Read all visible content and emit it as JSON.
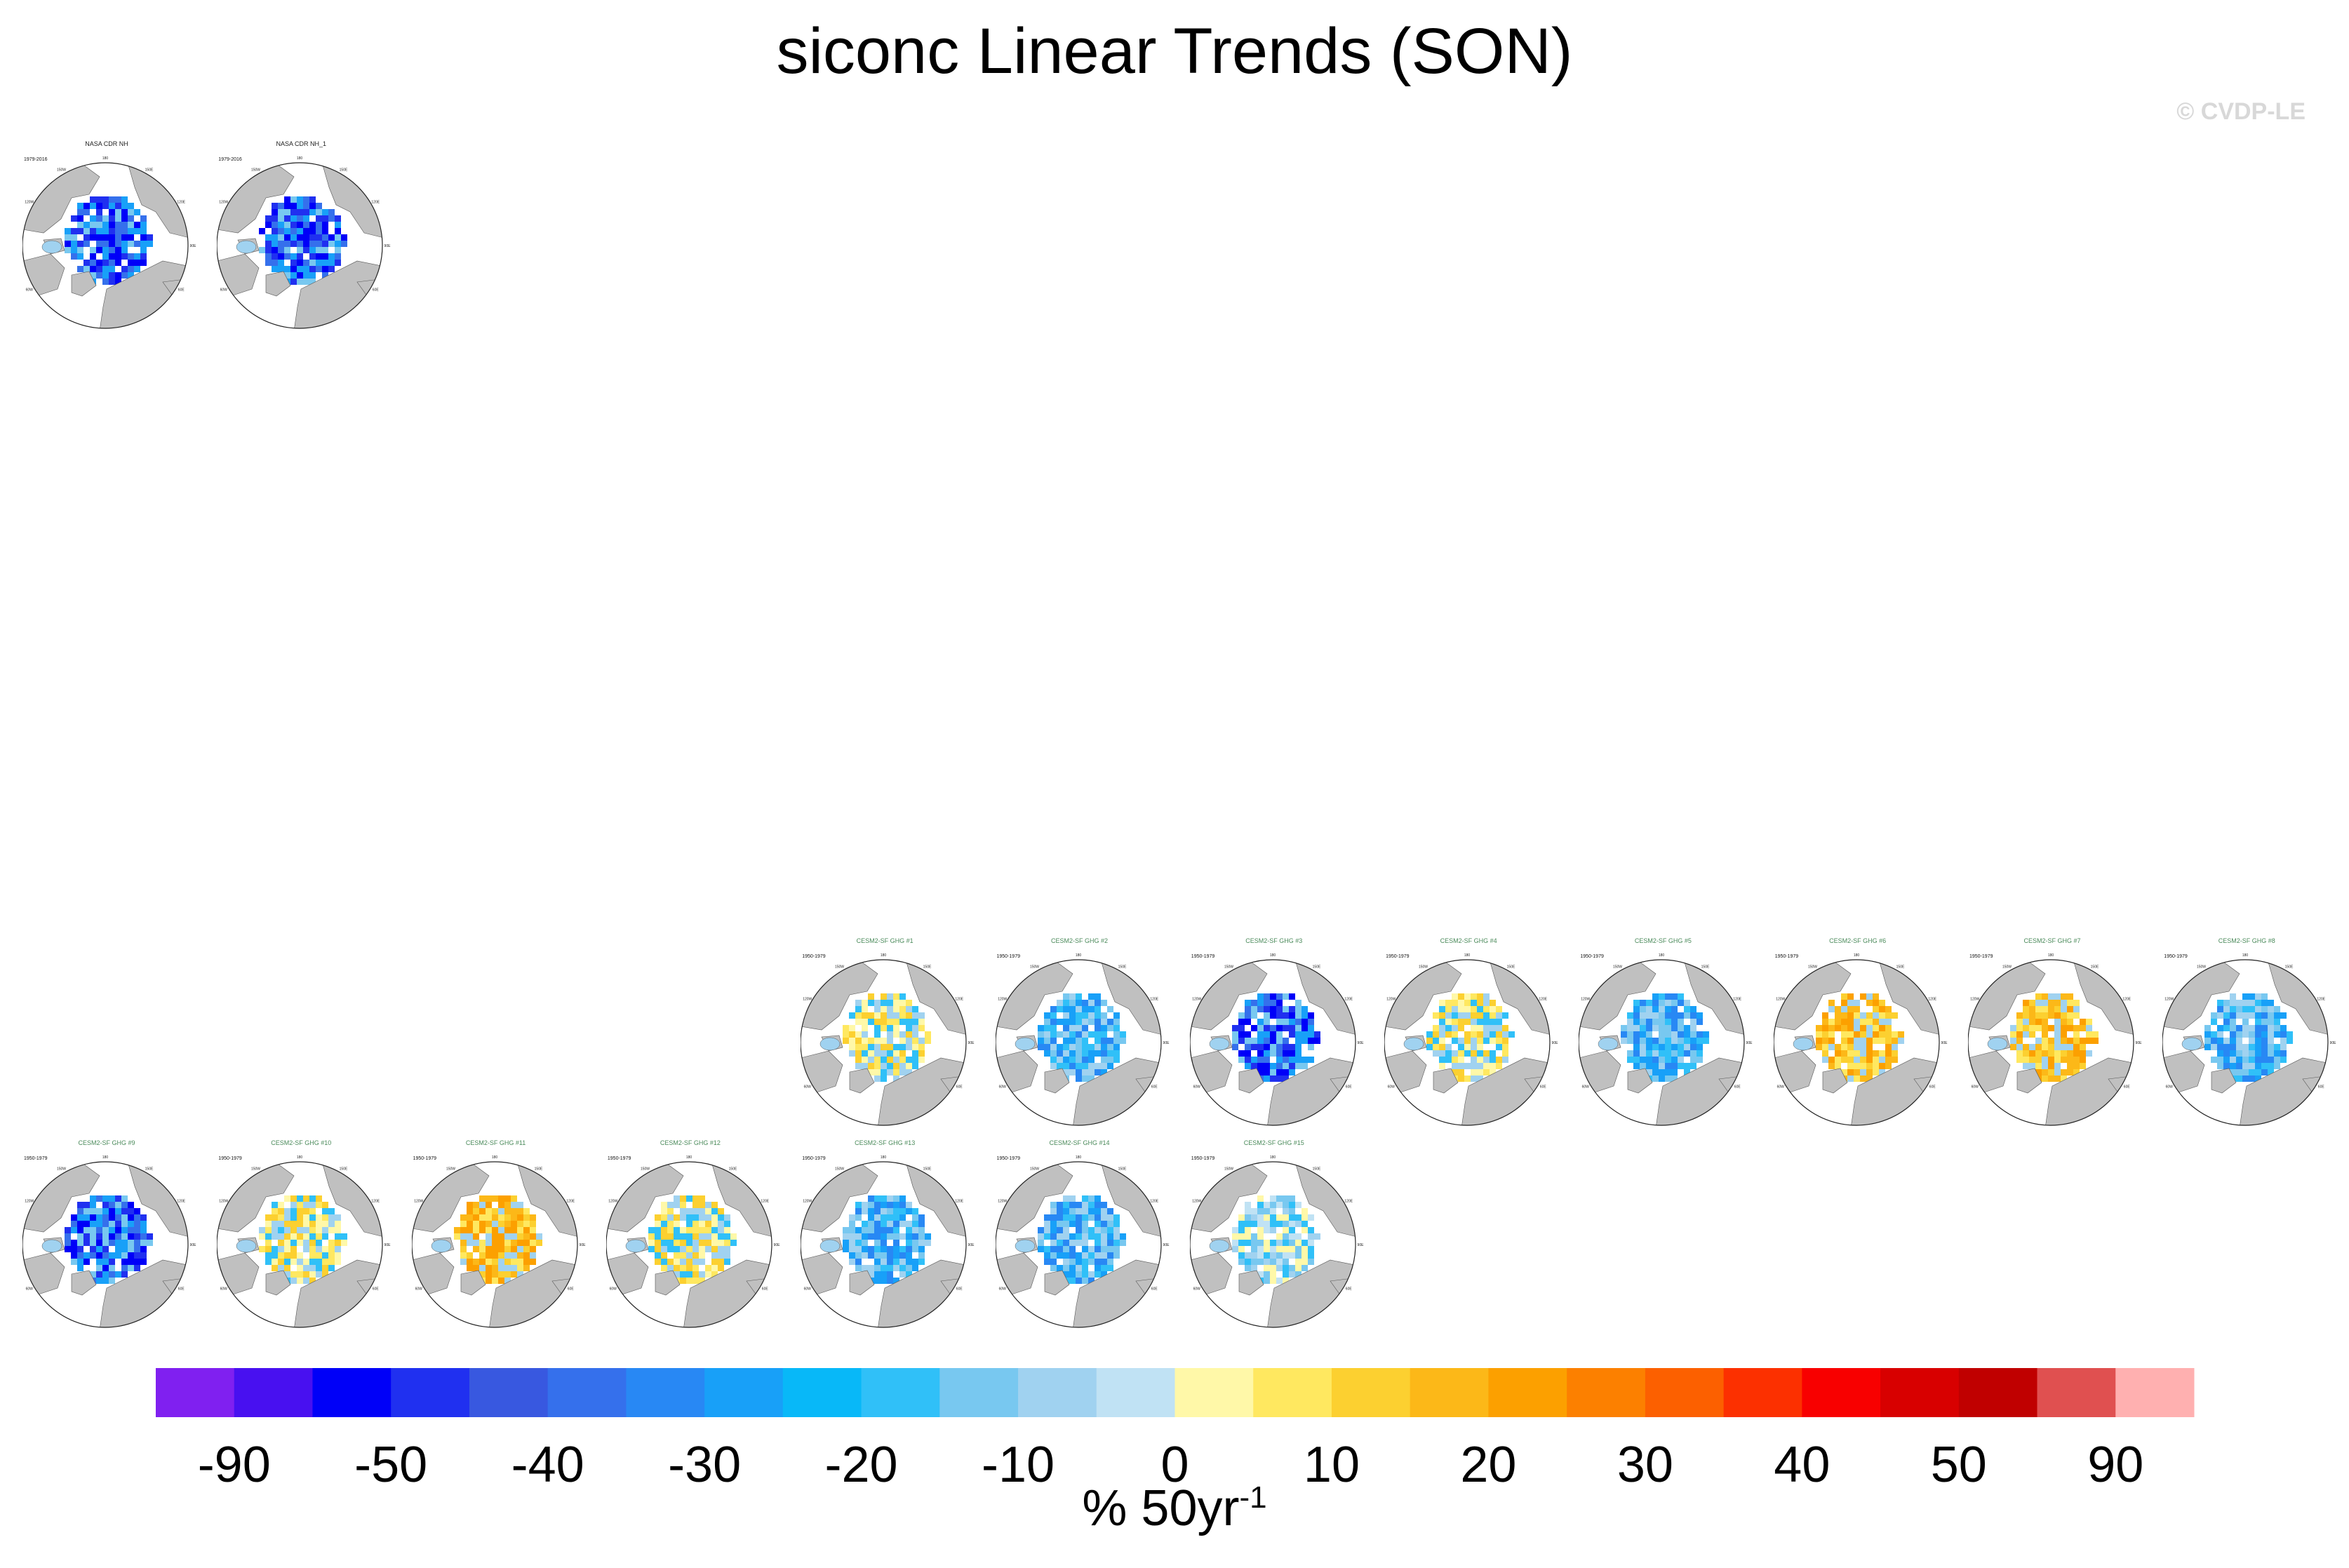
{
  "title": "siconc Linear Trends (SON)",
  "copyright": "© CVDP-LE",
  "unit_label": {
    "prefix": "% 50yr",
    "superscript": "-1"
  },
  "map_lon_labels": [
    "180",
    "150W",
    "150E",
    "120W",
    "120E",
    "90W",
    "90E",
    "60W",
    "60E",
    "0"
  ],
  "panels": [
    {
      "id": "obs-1",
      "title": "NASA CDR NH",
      "years": "1979-2016",
      "type": "observation",
      "row": 0,
      "col": 0,
      "palette": "strong-blue"
    },
    {
      "id": "obs-2",
      "title": "NASA CDR NH_1",
      "years": "1979-2016",
      "type": "observation",
      "row": 0,
      "col": 1,
      "palette": "strong-blue"
    },
    {
      "id": "m1",
      "title": "CESM2-SF GHG #1",
      "years": "1950-1979",
      "type": "model",
      "row": 1,
      "col": 4,
      "palette": "mixed-warm"
    },
    {
      "id": "m2",
      "title": "CESM2-SF GHG #2",
      "years": "1950-1979",
      "type": "model",
      "row": 1,
      "col": 5,
      "palette": "blue"
    },
    {
      "id": "m3",
      "title": "CESM2-SF GHG #3",
      "years": "1950-1979",
      "type": "model",
      "row": 1,
      "col": 6,
      "palette": "strong-blue"
    },
    {
      "id": "m4",
      "title": "CESM2-SF GHG #4",
      "years": "1950-1979",
      "type": "model",
      "row": 1,
      "col": 7,
      "palette": "mixed-warm"
    },
    {
      "id": "m5",
      "title": "CESM2-SF GHG #5",
      "years": "1950-1979",
      "type": "model",
      "row": 1,
      "col": 8,
      "palette": "blue"
    },
    {
      "id": "m6",
      "title": "CESM2-SF GHG #6",
      "years": "1950-1979",
      "type": "model",
      "row": 1,
      "col": 9,
      "palette": "warm"
    },
    {
      "id": "m7",
      "title": "CESM2-SF GHG #7",
      "years": "1950-1979",
      "type": "model",
      "row": 1,
      "col": 10,
      "palette": "warm"
    },
    {
      "id": "m8",
      "title": "CESM2-SF GHG #8",
      "years": "1950-1979",
      "type": "model",
      "row": 1,
      "col": 11,
      "palette": "blue"
    },
    {
      "id": "m9",
      "title": "CESM2-SF GHG #9",
      "years": "1950-1979",
      "type": "model",
      "row": 2,
      "col": 0,
      "palette": "strong-blue"
    },
    {
      "id": "m10",
      "title": "CESM2-SF GHG #10",
      "years": "1950-1979",
      "type": "model",
      "row": 2,
      "col": 1,
      "palette": "mixed-warm"
    },
    {
      "id": "m11",
      "title": "CESM2-SF GHG #11",
      "years": "1950-1979",
      "type": "model",
      "row": 2,
      "col": 2,
      "palette": "warm"
    },
    {
      "id": "m12",
      "title": "CESM2-SF GHG #12",
      "years": "1950-1979",
      "type": "model",
      "row": 2,
      "col": 3,
      "palette": "mixed-warm"
    },
    {
      "id": "m13",
      "title": "CESM2-SF GHG #13",
      "years": "1950-1979",
      "type": "model",
      "row": 2,
      "col": 4,
      "palette": "blue"
    },
    {
      "id": "m14",
      "title": "CESM2-SF GHG #14",
      "years": "1950-1979",
      "type": "model",
      "row": 2,
      "col": 5,
      "palette": "blue"
    },
    {
      "id": "m15",
      "title": "CESM2-SF GHG #15",
      "years": "1950-1979",
      "type": "model",
      "row": 2,
      "col": 6,
      "palette": "mixed-blue"
    }
  ],
  "chart_data": {
    "type": "heatmap",
    "title": "siconc Linear Trends (SON)",
    "projection": "north polar stereographic",
    "colorbar": {
      "label": "% 50yr-1",
      "tick_labels": [
        "-90",
        "-50",
        "-40",
        "-30",
        "-20",
        "-10",
        "0",
        "10",
        "20",
        "30",
        "40",
        "50",
        "90"
      ],
      "colors": [
        "#8020f0",
        "#4810f0",
        "#0000f8",
        "#2030f0",
        "#3858e0",
        "#3570ec",
        "#2888f4",
        "#18a0f8",
        "#08b8f8",
        "#30c0f8",
        "#78c8f0",
        "#a0d2f0",
        "#c0e2f4",
        "#fff8a8",
        "#ffe860",
        "#fcd030",
        "#fcb818",
        "#fca000",
        "#fc8000",
        "#fc6000",
        "#fc3000",
        "#f80000",
        "#d80000",
        "#c00000",
        "#e05050",
        "#ffb0b0"
      ]
    }
  }
}
